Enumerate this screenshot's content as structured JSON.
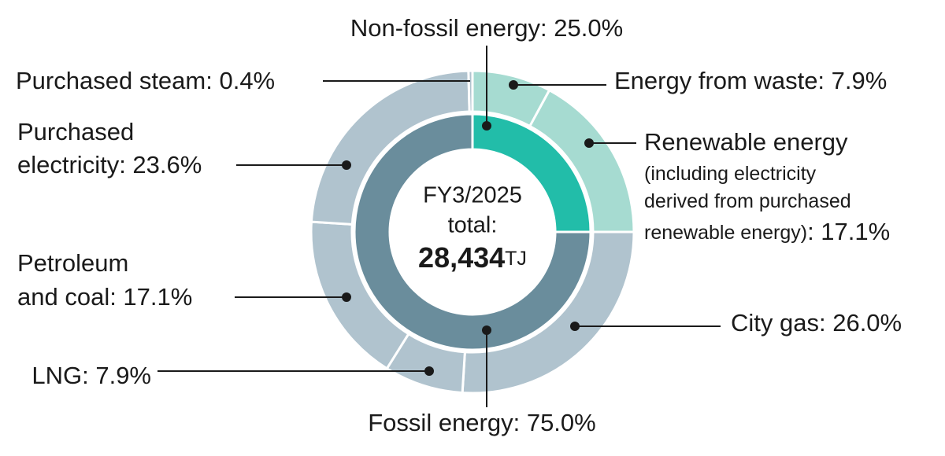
{
  "chart_data": {
    "type": "nested-donut",
    "center_lines": [
      "FY3/2025",
      "total:"
    ],
    "total": {
      "value": 28434,
      "label": "28,434"
    },
    "total_unit": "TJ",
    "rings": [
      {
        "values": [
          25.0,
          75.0
        ],
        "colors": [
          "#22bda9",
          "#6a8d9c"
        ],
        "labels": [
          [
            "Non-fossil energy: 25.0%"
          ],
          [
            "Fossil energy: 75.0%"
          ]
        ]
      },
      {
        "values": [
          7.9,
          17.1,
          26.0,
          7.9,
          17.1,
          23.6,
          0.4
        ],
        "colors": [
          "#a6dbd1",
          "#a6dbd1",
          "#b0c3ce",
          "#b0c3ce",
          "#b0c3ce",
          "#b0c3ce",
          "#b0c3ce"
        ],
        "labels": [
          [
            "Energy from waste: 7.9%"
          ],
          [
            "Renewable energy",
            "(including electricity",
            "derived from purchased",
            "renewable energy)",
            ": 17.1%"
          ],
          [
            "City gas: 26.0%"
          ],
          [
            "LNG: 7.9%"
          ],
          [
            "Petroleum",
            "and coal: 17.1%"
          ],
          [
            "Purchased",
            "electricity: 23.6%"
          ],
          [
            "Purchased steam: 0.4%"
          ]
        ]
      }
    ]
  }
}
